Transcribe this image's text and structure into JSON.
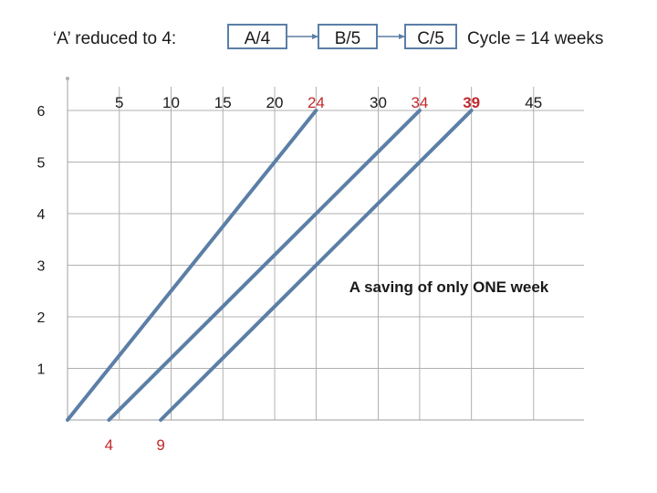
{
  "header": {
    "title": "‘A’ reduced to 4:",
    "stages": [
      "A/4",
      "B/5",
      "C/5"
    ],
    "cycle": "Cycle = 14 weeks"
  },
  "colors": {
    "line": "#5b7fa6",
    "grid": "#b0b0b0",
    "highlight": "#c0282c",
    "text": "#1a1a1a"
  },
  "chart_data": {
    "type": "line",
    "x_ticks": [
      {
        "label": "5",
        "value": 5,
        "highlight": false
      },
      {
        "label": "10",
        "value": 10,
        "highlight": false
      },
      {
        "label": "15",
        "value": 15,
        "highlight": false
      },
      {
        "label": "20",
        "value": 20,
        "highlight": false
      },
      {
        "label": "24",
        "value": 24,
        "highlight": true
      },
      {
        "label": "30",
        "value": 30,
        "highlight": false
      },
      {
        "label": "34",
        "value": 34,
        "highlight": true
      },
      {
        "label": "39",
        "value": 39,
        "highlight": true
      },
      {
        "label": "45",
        "value": 45,
        "highlight": false
      }
    ],
    "y_ticks": [
      "1",
      "2",
      "3",
      "4",
      "5",
      "6"
    ],
    "bottom_labels": [
      {
        "label": "4",
        "value": 4
      },
      {
        "label": "9",
        "value": 9
      }
    ],
    "ylim": [
      0,
      6
    ],
    "series": [
      {
        "x": [
          0,
          24
        ],
        "y": [
          0,
          6
        ]
      },
      {
        "x": [
          4,
          34
        ],
        "y": [
          0,
          6
        ]
      },
      {
        "x": [
          9,
          39
        ],
        "y": [
          0,
          6
        ]
      }
    ],
    "annotation": "A saving of only ONE week"
  }
}
